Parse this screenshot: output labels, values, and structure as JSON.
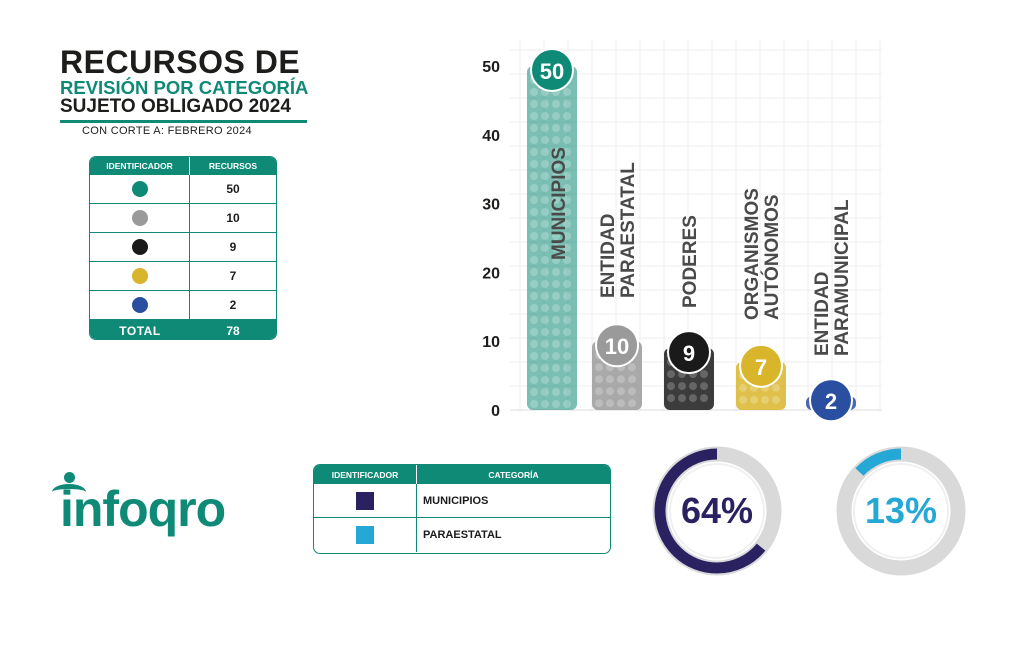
{
  "header": {
    "line1": "RECURSOS DE",
    "line2": "REVISIÓN POR CATEGORÍA",
    "line3": "SUJETO OBLIGADO 2024",
    "cutoff": "CON CORTE A: FEBRERO 2024"
  },
  "table1": {
    "col_identifier": "IDENTIFICADOR",
    "col_resources": "RECURSOS",
    "rows": [
      {
        "color": "#0f8a77",
        "value": "50"
      },
      {
        "color": "#9a9a9a",
        "value": "10"
      },
      {
        "color": "#1a1a1a",
        "value": "9"
      },
      {
        "color": "#d9b52c",
        "value": "7"
      },
      {
        "color": "#2a4fa0",
        "value": "2"
      }
    ],
    "total_label": "TOTAL",
    "total_value": "78"
  },
  "chart_data": {
    "type": "bar",
    "categories": [
      "MUNICIPIOS",
      "ENTIDAD PARAESTATAL",
      "PODERES",
      "ORGANISMOS AUTÓNOMOS",
      "ENTIDAD PARAMUNICIPAL"
    ],
    "category_lines": [
      [
        "MUNICIPIOS"
      ],
      [
        "ENTIDAD",
        "PARAESTATAL"
      ],
      [
        "PODERES"
      ],
      [
        "ORGANISMOS",
        "AUTÓNOMOS"
      ],
      [
        "ENTIDAD",
        "PARAMUNICIPAL"
      ]
    ],
    "values": [
      50,
      10,
      9,
      7,
      2
    ],
    "colors": [
      "#0f8a77",
      "#9a9a9a",
      "#1a1a1a",
      "#d9b52c",
      "#2a4fa0"
    ],
    "yticks": [
      0,
      10,
      20,
      30,
      40,
      50
    ],
    "ylim": [
      0,
      50
    ],
    "grid": true
  },
  "logo": {
    "text": "infoqro"
  },
  "table2": {
    "col_identifier": "IDENTIFICADOR",
    "col_category": "CATEGORÍA",
    "rows": [
      {
        "color": "#2a2260",
        "label": "MUNICIPIOS"
      },
      {
        "color": "#25a8d6",
        "label": "PARAESTATAL"
      }
    ]
  },
  "rings": [
    {
      "value": 64,
      "label": "64%",
      "color": "#2a2260"
    },
    {
      "value": 13,
      "label": "13%",
      "color": "#25a8d6"
    }
  ]
}
